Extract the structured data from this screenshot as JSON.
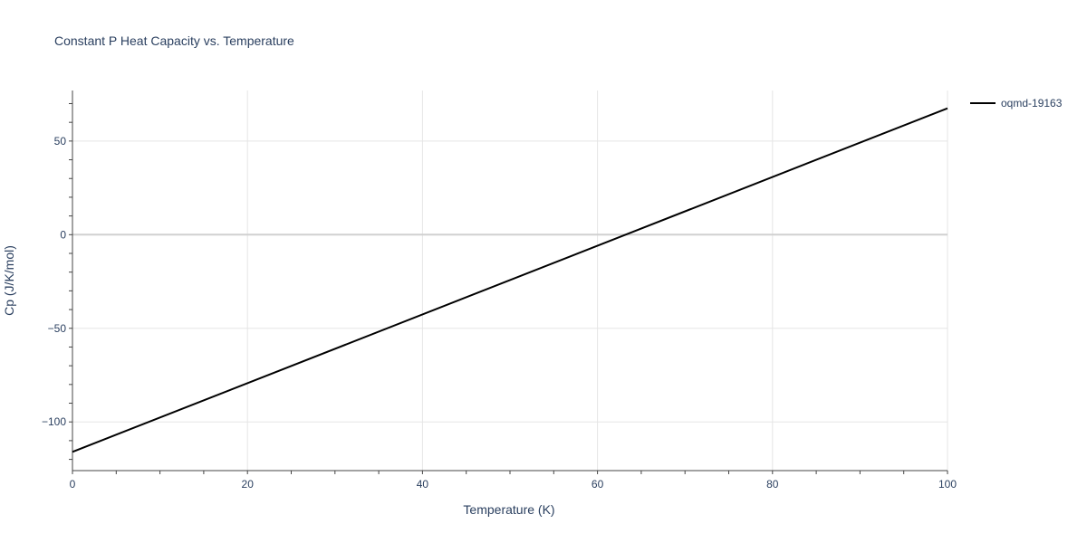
{
  "chart_data": {
    "type": "line",
    "title": "Constant P Heat Capacity vs. Temperature",
    "xlabel": "Temperature (K)",
    "ylabel": "Cp (J/K/mol)",
    "xlim": [
      0,
      100
    ],
    "ylim": [
      -126,
      77
    ],
    "x_ticks": [
      0,
      20,
      40,
      60,
      80,
      100
    ],
    "x_tick_labels": [
      "0",
      "20",
      "40",
      "60",
      "80",
      "100"
    ],
    "y_ticks": [
      50,
      0,
      -50,
      -100
    ],
    "y_tick_labels": [
      "50",
      "0",
      "−50",
      "−100"
    ],
    "grid": true,
    "legend_position": "top-right, outside plot",
    "series": [
      {
        "name": "oqmd-19163",
        "color": "#000000",
        "x": [
          0,
          100
        ],
        "y": [
          -116,
          67.5
        ]
      }
    ]
  }
}
